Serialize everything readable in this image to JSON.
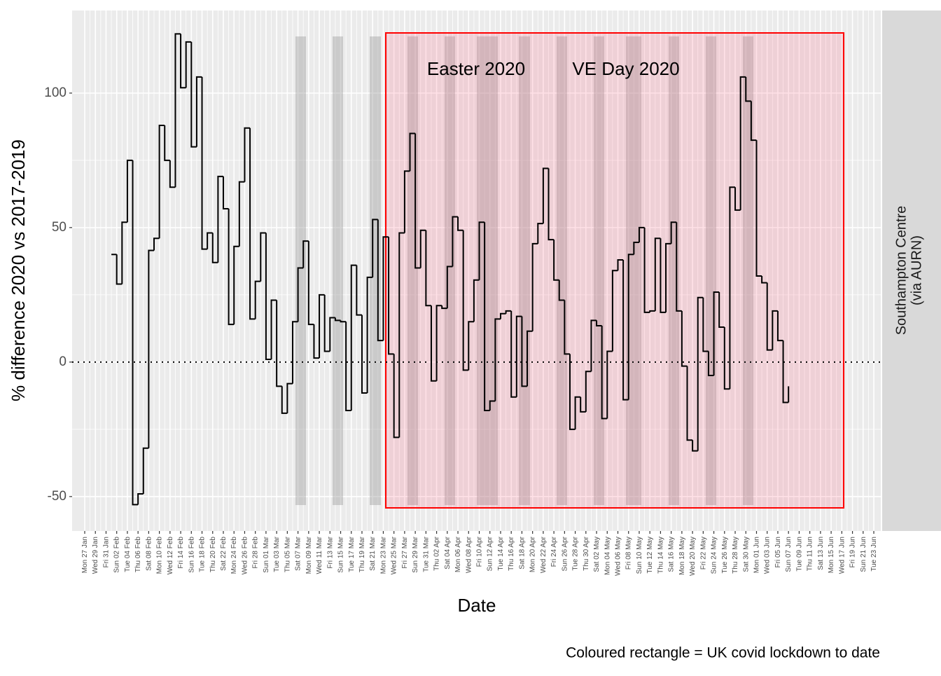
{
  "chart_data": {
    "type": "step",
    "xlabel": "Date",
    "ylabel": "% difference 2020 vs 2017-2019",
    "facet_label": [
      "Southampton Centre",
      "(via AURN)"
    ],
    "caption": "Coloured rectangle = UK covid lockdown to date",
    "annotations": [
      "Easter 2020",
      "VE Day 2020"
    ],
    "categories": [
      "Mon 27 Jan",
      null,
      "Wed 29 Jan",
      null,
      "Fri 31 Jan",
      null,
      "Sun 02 Feb",
      null,
      "Tue 04 Feb",
      null,
      "Thu 06 Feb",
      null,
      "Sat 08 Feb",
      null,
      "Mon 10 Feb",
      null,
      "Wed 12 Feb",
      null,
      "Fri 14 Feb",
      null,
      "Sun 16 Feb",
      null,
      "Tue 18 Feb",
      null,
      "Thu 20 Feb",
      null,
      "Sat 22 Feb",
      null,
      "Mon 24 Feb",
      null,
      "Wed 26 Feb",
      null,
      "Fri 28 Feb",
      null,
      "Sun 01 Mar",
      null,
      "Tue 03 Mar",
      null,
      "Thu 05 Mar",
      null,
      "Sat 07 Mar",
      null,
      "Mon 09 Mar",
      null,
      "Wed 11 Mar",
      null,
      "Fri 13 Mar",
      null,
      "Sun 15 Mar",
      null,
      "Tue 17 Mar",
      null,
      "Thu 19 Mar",
      null,
      "Sat 21 Mar",
      null,
      "Mon 23 Mar",
      null,
      "Wed 25 Mar",
      null,
      "Fri 27 Mar",
      null,
      "Sun 29 Mar",
      null,
      "Tue 31 Mar",
      null,
      "Thu 02 Apr",
      null,
      "Sat 04 Apr",
      null,
      "Mon 06 Apr",
      null,
      "Wed 08 Apr",
      null,
      "Fri 10 Apr",
      null,
      "Sun 12 Apr",
      null,
      "Tue 14 Apr",
      null,
      "Thu 16 Apr",
      null,
      "Sat 18 Apr",
      null,
      "Mon 20 Apr",
      null,
      "Wed 22 Apr",
      null,
      "Fri 24 Apr",
      null,
      "Sun 26 Apr",
      null,
      "Tue 28 Apr",
      null,
      "Thu 30 Apr",
      null,
      "Sat 02 May",
      null,
      "Mon 04 May",
      null,
      "Wed 06 May",
      null,
      "Fri 08 May",
      null,
      "Sun 10 May",
      null,
      "Tue 12 May",
      null,
      "Thu 14 May",
      null,
      "Sat 16 May",
      null,
      "Mon 18 May",
      null,
      "Wed 20 May",
      null,
      "Fri 22 May",
      null,
      "Sun 24 May",
      null,
      "Tue 26 May",
      null,
      "Thu 28 May",
      null,
      "Sat 30 May",
      null,
      "Mon 01 Jun",
      null,
      "Wed 03 Jun",
      null,
      "Fri 05 Jun",
      null,
      "Sun 07 Jun",
      null,
      "Tue 09 Jun",
      null,
      "Thu 11 Jun",
      null,
      "Sat 13 Jun",
      null,
      "Mon 15 Jun",
      null,
      "Wed 17 Jun",
      null,
      "Fri 19 Jun",
      null,
      "Sun 21 Jun",
      null,
      "Tue 23 Jun"
    ],
    "values": [
      null,
      null,
      null,
      null,
      null,
      40,
      29,
      52,
      75,
      -53,
      -49,
      -32,
      41.5,
      46,
      88,
      75,
      65,
      122,
      102,
      119,
      80,
      106,
      42,
      48,
      37,
      69,
      57,
      14,
      43,
      67,
      87,
      16,
      30,
      48,
      1,
      23,
      -9,
      -19,
      -8,
      15,
      35,
      45,
      14,
      1.5,
      25,
      4,
      16.5,
      15.5,
      15,
      -18,
      36,
      17.5,
      -11.5,
      31.5,
      53,
      8,
      46.5,
      3,
      -28,
      48,
      71,
      85,
      35,
      49,
      21,
      -7,
      21,
      20,
      35.5,
      54,
      49,
      -3,
      15,
      30.5,
      52,
      -18,
      -14.5,
      16,
      18,
      19,
      -13,
      17,
      -9,
      11.5,
      44,
      51.5,
      72,
      45.5,
      30.5,
      23,
      3,
      -25,
      -13,
      -18.5,
      -3.5,
      15.5,
      13.5,
      -21,
      4,
      34,
      38,
      -14,
      40,
      44.5,
      50,
      18.5,
      19,
      46,
      18.5,
      44,
      52,
      19,
      -1.5,
      -29,
      -33,
      24,
      4,
      -5,
      26,
      13,
      -10,
      65,
      56.5,
      106,
      97,
      82.5,
      32,
      29.5,
      4.5,
      19,
      8,
      -15,
      -9,
      null,
      null,
      null,
      null,
      null,
      null,
      null,
      null,
      null,
      null,
      null,
      null,
      null,
      null,
      null,
      null
    ],
    "color": "#000000",
    "ylim": [
      -62.8,
      130.7
    ],
    "yticks": [
      -50,
      0,
      50,
      100
    ],
    "hline": 0,
    "grid": true
  }
}
